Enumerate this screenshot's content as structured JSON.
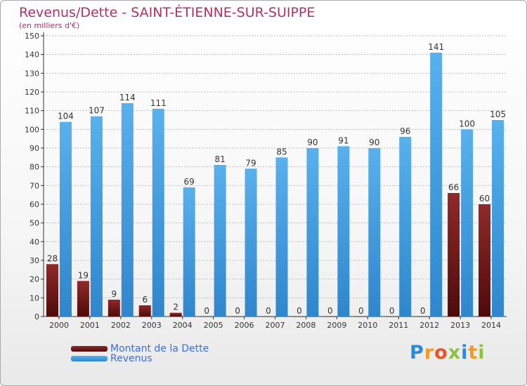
{
  "title": "Revenus/Dette - SAINT-ÉTIENNE-SUR-SUIPPE",
  "subtitle": "(en milliers d'€)",
  "logo": {
    "letters": [
      "P",
      "r",
      "o",
      "x",
      "i",
      "t",
      "i"
    ],
    "colors": [
      "#2e8ad8",
      "#f39a1f",
      "#e9542a",
      "#8bc53f",
      "#2e8ad8",
      "#f39a1f",
      "#8bc53f"
    ]
  },
  "colors": {
    "debt": "#7d1c1c",
    "revenue": "#4ea7e6",
    "axis": "#333333",
    "grid": "#bdbdbd"
  },
  "chart_data": {
    "type": "bar",
    "title": "Revenus/Dette - SAINT-ÉTIENNE-SUR-SUIPPE",
    "subtitle": "(en milliers d'€)",
    "categories": [
      "2000",
      "2001",
      "2002",
      "2003",
      "2004",
      "2005",
      "2006",
      "2007",
      "2008",
      "2009",
      "2010",
      "2011",
      "2012",
      "2013",
      "2014"
    ],
    "series": [
      {
        "name": "Montant de la Dette",
        "values": [
          28,
          19,
          9,
          6,
          2,
          0,
          0,
          0,
          0,
          0,
          0,
          0,
          0,
          66,
          60
        ]
      },
      {
        "name": "Revenus",
        "values": [
          104,
          107,
          114,
          111,
          69,
          81,
          79,
          85,
          90,
          91,
          90,
          96,
          141,
          100,
          105
        ]
      }
    ],
    "yticks": [
      0,
      10,
      20,
      30,
      40,
      50,
      60,
      70,
      80,
      90,
      100,
      110,
      120,
      130,
      140,
      150
    ],
    "ylim": [
      0,
      150
    ],
    "grid": true,
    "legend": "bottom-left"
  }
}
